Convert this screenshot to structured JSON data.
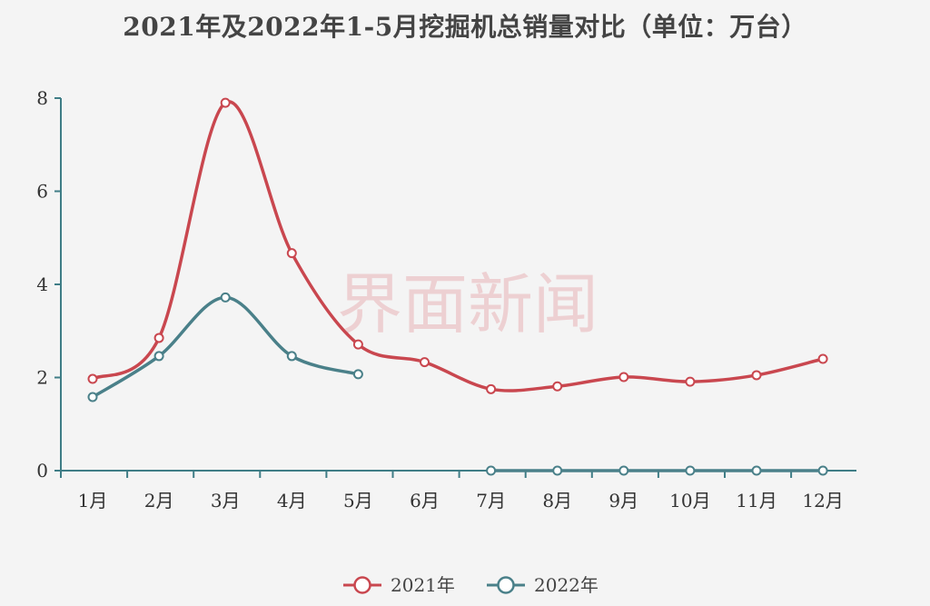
{
  "chart_data": {
    "type": "line",
    "title": "2021年及2022年1-5月挖掘机总销量对比（单位：万台）",
    "categories": [
      "1月",
      "2月",
      "3月",
      "4月",
      "5月",
      "6月",
      "7月",
      "8月",
      "9月",
      "10月",
      "11月",
      "12月"
    ],
    "y_ticks": [
      "0",
      "2",
      "4",
      "6",
      "8"
    ],
    "ylim": [
      0,
      8
    ],
    "grid": false,
    "legend_position": "bottom",
    "watermark": "界面新闻",
    "series": [
      {
        "name": "2021年",
        "color": "#c9474f",
        "values": [
          1.97,
          2.85,
          7.9,
          4.67,
          2.71,
          2.33,
          1.75,
          1.81,
          2.01,
          1.91,
          2.05,
          2.4
        ]
      },
      {
        "name": "2022年",
        "color": "#4a8089",
        "values": [
          1.58,
          2.46,
          3.72,
          2.46,
          2.07,
          null,
          0,
          0,
          0,
          0,
          0,
          0
        ]
      }
    ]
  }
}
